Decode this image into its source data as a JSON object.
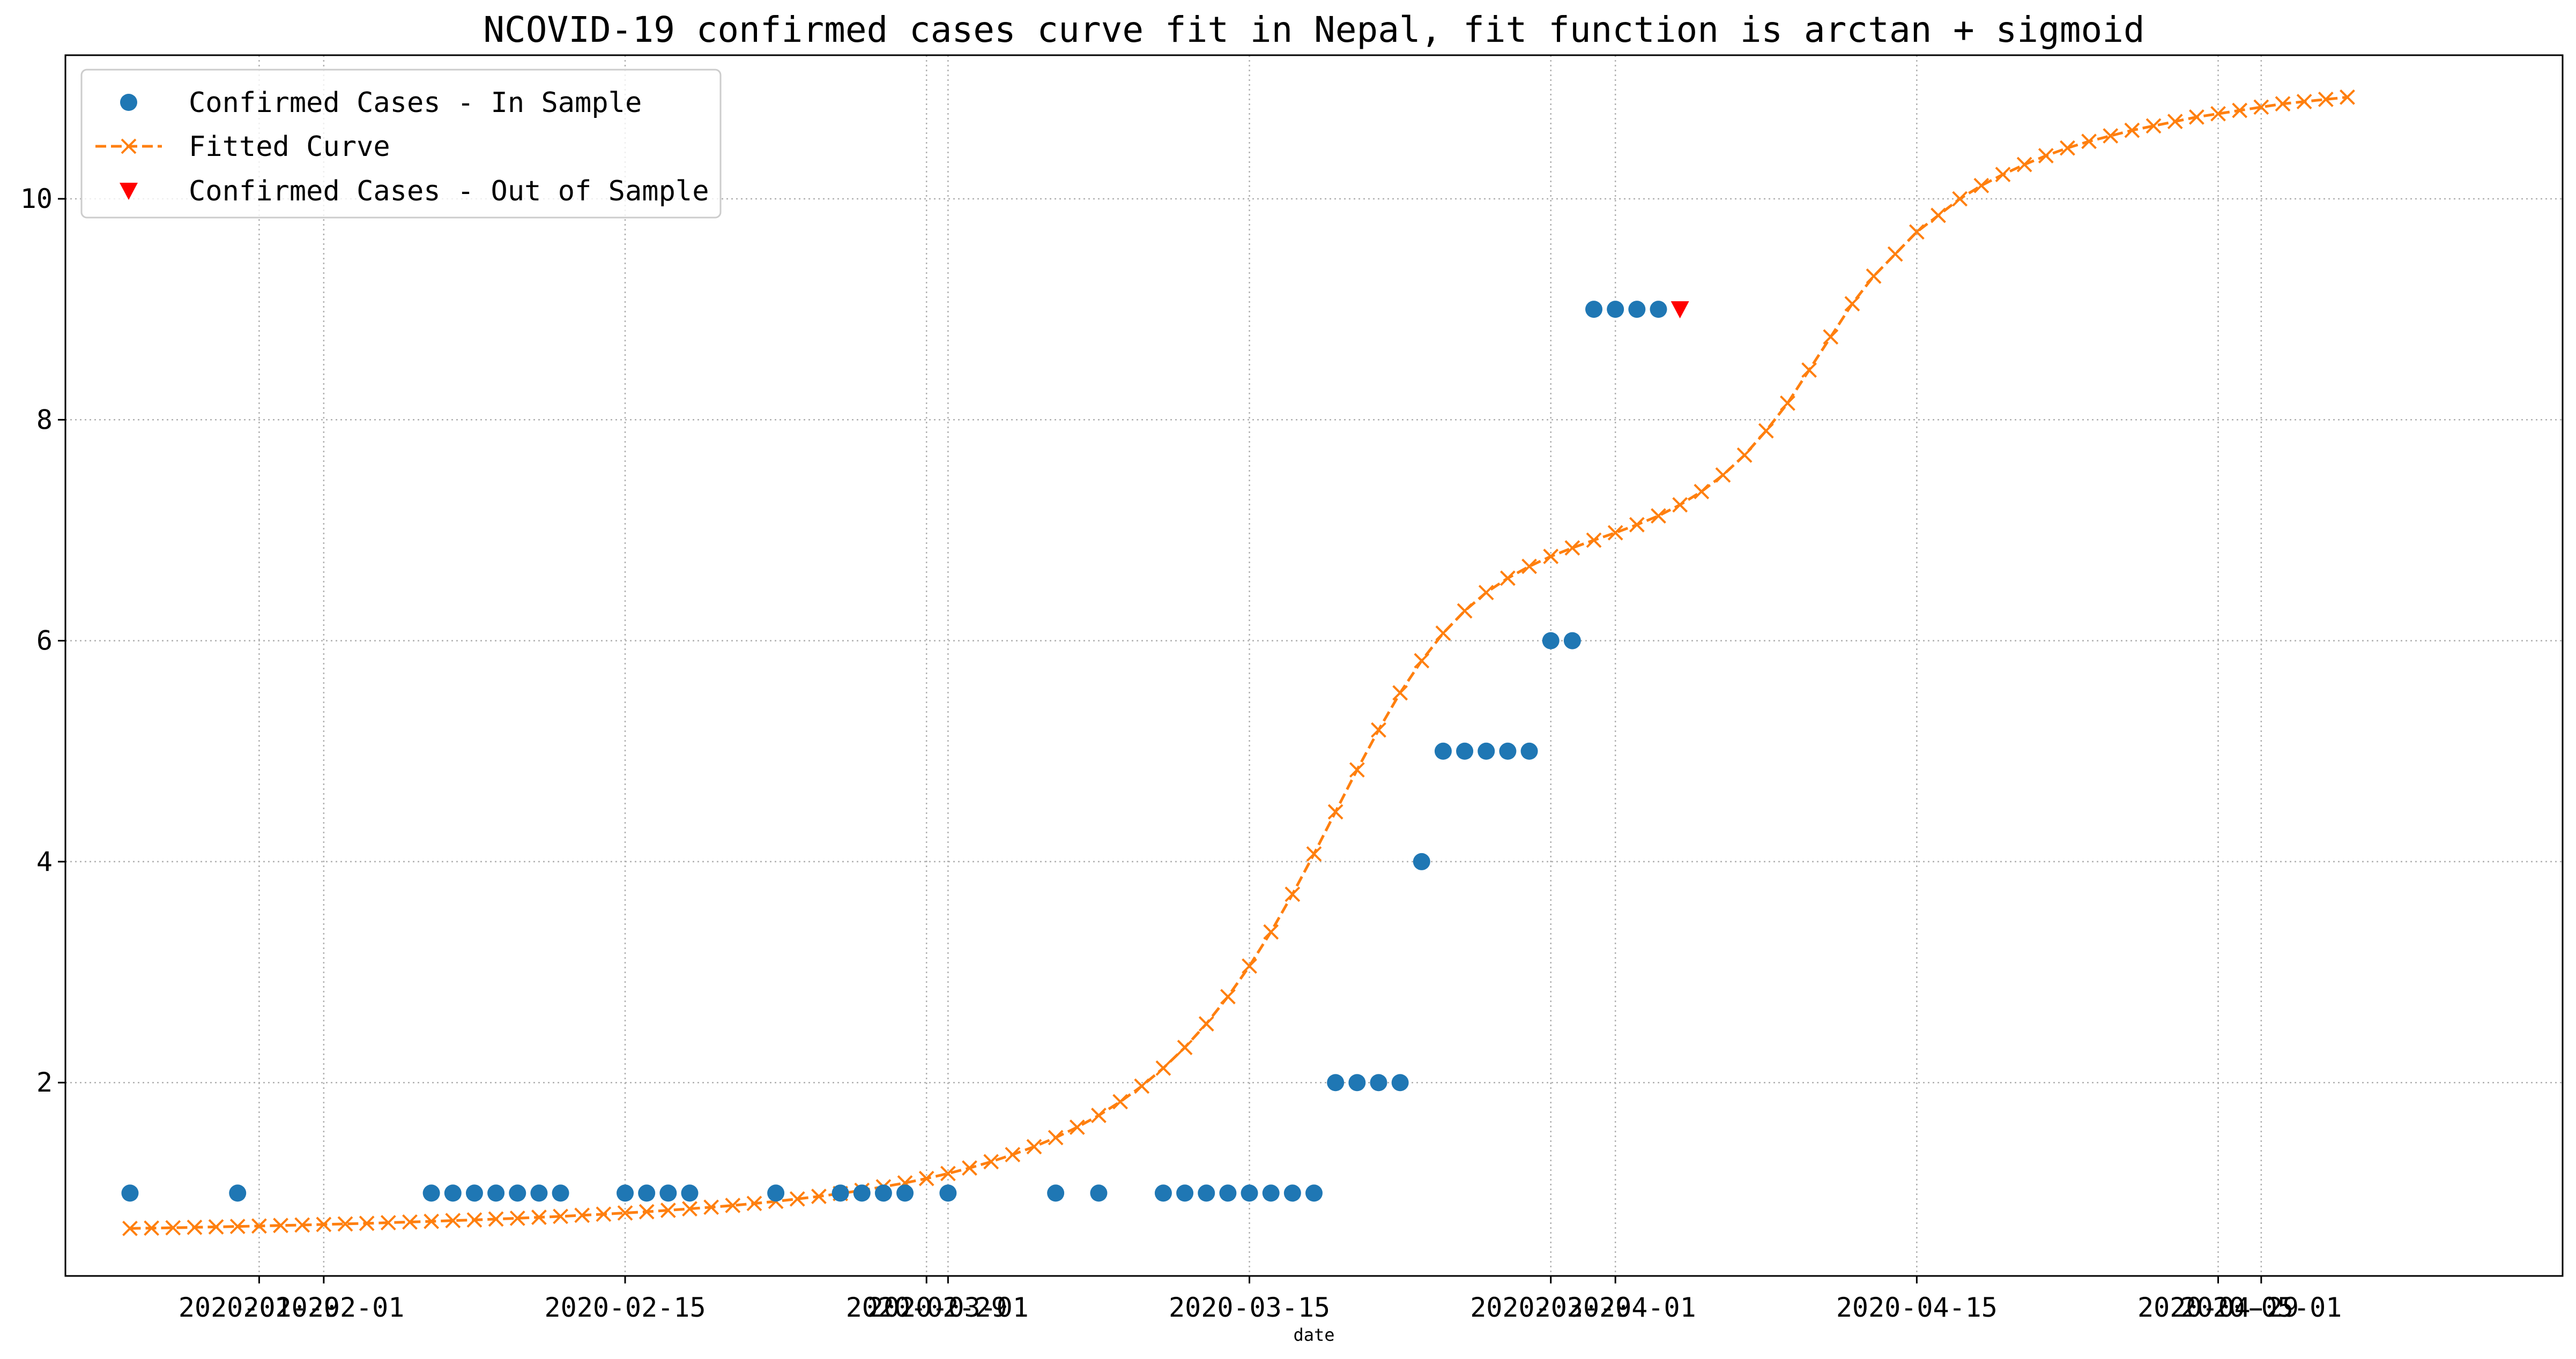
{
  "chart_data": {
    "type": "scatter",
    "title": "NCOVID-19 confirmed cases curve fit in Nepal, fit function is arctan + sigmoid",
    "xlabel": "date",
    "ylabel": "",
    "x_tick_labels": [
      "2020-01-29",
      "2020-02-01",
      "2020-02-15",
      "2020-02-29",
      "2020-03-01",
      "2020-03-15",
      "2020-03-29",
      "2020-04-01",
      "2020-04-15",
      "2020-04-29",
      "2020-05-01"
    ],
    "y_tick_labels": [
      "2",
      "4",
      "6",
      "8",
      "10"
    ],
    "xlim": [
      "2020-01-20",
      "2020-05-15"
    ],
    "ylim": [
      0.25,
      11.3
    ],
    "grid": true,
    "legend_position": "top-left",
    "series": [
      {
        "name": "Confirmed Cases - In Sample",
        "marker": "circle",
        "color": "#1f77b4",
        "points": [
          [
            "2020-01-23",
            1
          ],
          [
            "2020-01-28",
            1
          ],
          [
            "2020-02-06",
            1
          ],
          [
            "2020-02-07",
            1
          ],
          [
            "2020-02-08",
            1
          ],
          [
            "2020-02-09",
            1
          ],
          [
            "2020-02-10",
            1
          ],
          [
            "2020-02-11",
            1
          ],
          [
            "2020-02-12",
            1
          ],
          [
            "2020-02-15",
            1
          ],
          [
            "2020-02-16",
            1
          ],
          [
            "2020-02-17",
            1
          ],
          [
            "2020-02-18",
            1
          ],
          [
            "2020-02-22",
            1
          ],
          [
            "2020-02-25",
            1
          ],
          [
            "2020-02-26",
            1
          ],
          [
            "2020-02-27",
            1
          ],
          [
            "2020-02-28",
            1
          ],
          [
            "2020-03-01",
            1
          ],
          [
            "2020-03-06",
            1
          ],
          [
            "2020-03-08",
            1
          ],
          [
            "2020-03-11",
            1
          ],
          [
            "2020-03-12",
            1
          ],
          [
            "2020-03-13",
            1
          ],
          [
            "2020-03-14",
            1
          ],
          [
            "2020-03-15",
            1
          ],
          [
            "2020-03-16",
            1
          ],
          [
            "2020-03-17",
            1
          ],
          [
            "2020-03-18",
            1
          ],
          [
            "2020-03-19",
            2
          ],
          [
            "2020-03-20",
            2
          ],
          [
            "2020-03-21",
            2
          ],
          [
            "2020-03-22",
            2
          ],
          [
            "2020-03-23",
            4
          ],
          [
            "2020-03-24",
            5
          ],
          [
            "2020-03-25",
            5
          ],
          [
            "2020-03-26",
            5
          ],
          [
            "2020-03-27",
            5
          ],
          [
            "2020-03-28",
            5
          ],
          [
            "2020-03-29",
            6
          ],
          [
            "2020-03-30",
            6
          ],
          [
            "2020-03-31",
            9
          ],
          [
            "2020-04-01",
            9
          ],
          [
            "2020-04-02",
            9
          ],
          [
            "2020-04-03",
            9
          ]
        ]
      },
      {
        "name": "Fitted Curve",
        "marker": "x",
        "linestyle": "dashed",
        "color": "#ff7f0e",
        "x_range": [
          "2020-01-23",
          "2020-05-05"
        ],
        "y": [
          0.68,
          0.683,
          0.686,
          0.69,
          0.694,
          0.698,
          0.702,
          0.707,
          0.711,
          0.716,
          0.721,
          0.726,
          0.732,
          0.738,
          0.744,
          0.751,
          0.757,
          0.765,
          0.772,
          0.781,
          0.789,
          0.799,
          0.809,
          0.82,
          0.831,
          0.844,
          0.858,
          0.872,
          0.888,
          0.906,
          0.925,
          0.947,
          0.97,
          0.996,
          1.025,
          1.057,
          1.092,
          1.132,
          1.177,
          1.227,
          1.284,
          1.348,
          1.42,
          1.502,
          1.596,
          1.703,
          1.827,
          1.968,
          2.131,
          2.318,
          2.532,
          2.778,
          3.055,
          3.364,
          3.705,
          4.07,
          4.451,
          4.831,
          5.192,
          5.528,
          5.819,
          6.068,
          6.27,
          6.436,
          6.566,
          6.673,
          6.763,
          6.84,
          6.91,
          6.977,
          7.05,
          7.13,
          7.23,
          7.35,
          7.5,
          7.68,
          7.9,
          8.15,
          8.45,
          8.75,
          9.05,
          9.3,
          9.5,
          9.7,
          9.85,
          10.0,
          10.12,
          10.22,
          10.31,
          10.39,
          10.46,
          10.52,
          10.57,
          10.62,
          10.66,
          10.7,
          10.74,
          10.77,
          10.8,
          10.83,
          10.86,
          10.88,
          10.9,
          10.92
        ]
      },
      {
        "name": "Confirmed Cases - Out of Sample",
        "marker": "triangle-down",
        "color": "#ff0000",
        "points": [
          [
            "2020-04-04",
            9
          ]
        ]
      }
    ]
  }
}
